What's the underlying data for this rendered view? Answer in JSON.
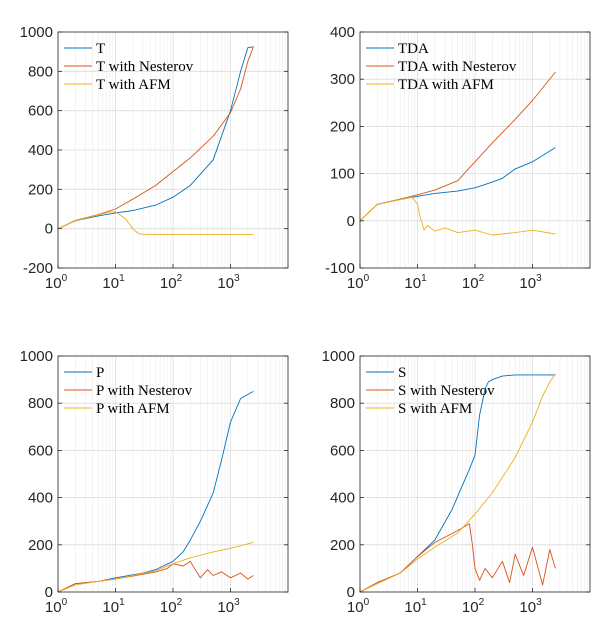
{
  "chart_data": [
    {
      "type": "line",
      "xscale": "log",
      "xlim": [
        1,
        10000
      ],
      "ylim": [
        -200,
        1000
      ],
      "yticks": [
        -200,
        0,
        200,
        400,
        600,
        800,
        1000
      ],
      "ytick_labels": [
        "-200",
        "0",
        "200",
        "400",
        "600",
        "800",
        "1000"
      ],
      "xtick_labels": [
        {
          "base": "10",
          "exp": "0"
        },
        {
          "base": "10",
          "exp": "1"
        },
        {
          "base": "10",
          "exp": "2"
        },
        {
          "base": "10",
          "exp": "3"
        }
      ],
      "grid": true,
      "legend_position": "top-left",
      "series": [
        {
          "name": "T",
          "color": "#0072bd",
          "x": [
            1,
            2,
            5,
            10,
            20,
            50,
            100,
            200,
            500,
            1000,
            1500,
            2000,
            2500
          ],
          "y": [
            0,
            40,
            65,
            80,
            92,
            120,
            160,
            220,
            350,
            600,
            800,
            920,
            925
          ]
        },
        {
          "name": "T with Nesterov",
          "color": "#d95319",
          "x": [
            1,
            2,
            5,
            10,
            20,
            50,
            100,
            200,
            500,
            1000,
            1500,
            2000,
            2500
          ],
          "y": [
            0,
            42,
            72,
            100,
            150,
            220,
            290,
            360,
            470,
            590,
            710,
            850,
            925
          ]
        },
        {
          "name": "T with AFM",
          "color": "#edb120",
          "x": [
            1,
            2,
            5,
            8,
            10,
            15,
            20,
            25,
            30,
            50,
            100,
            500,
            1000,
            2500
          ],
          "y": [
            0,
            40,
            70,
            85,
            85,
            50,
            0,
            -25,
            -28,
            -30,
            -30,
            -30,
            -30,
            -30
          ]
        }
      ]
    },
    {
      "type": "line",
      "xscale": "log",
      "xlim": [
        1,
        10000
      ],
      "ylim": [
        -100,
        400
      ],
      "yticks": [
        -100,
        0,
        100,
        200,
        300,
        400
      ],
      "ytick_labels": [
        "-100",
        "0",
        "100",
        "200",
        "300",
        "400"
      ],
      "xtick_labels": [
        {
          "base": "10",
          "exp": "0"
        },
        {
          "base": "10",
          "exp": "1"
        },
        {
          "base": "10",
          "exp": "2"
        },
        {
          "base": "10",
          "exp": "3"
        }
      ],
      "grid": true,
      "legend_position": "top-left",
      "series": [
        {
          "name": "TDA",
          "color": "#0072bd",
          "x": [
            1,
            2,
            5,
            10,
            20,
            50,
            100,
            200,
            300,
            500,
            1000,
            2500
          ],
          "y": [
            0,
            35,
            45,
            52,
            58,
            63,
            70,
            82,
            90,
            110,
            125,
            155
          ]
        },
        {
          "name": "TDA with Nesterov",
          "color": "#d95319",
          "x": [
            1,
            2,
            5,
            10,
            20,
            50,
            100,
            200,
            500,
            1000,
            2500
          ],
          "y": [
            0,
            35,
            46,
            55,
            65,
            85,
            125,
            165,
            215,
            255,
            315
          ]
        },
        {
          "name": "TDA with AFM",
          "color": "#edb120",
          "x": [
            1,
            2,
            5,
            8,
            10,
            11,
            12,
            13,
            15,
            20,
            30,
            50,
            100,
            200,
            500,
            1000,
            2500
          ],
          "y": [
            0,
            35,
            45,
            50,
            35,
            10,
            -5,
            -20,
            -10,
            -22,
            -15,
            -25,
            -20,
            -30,
            -25,
            -20,
            -28
          ]
        }
      ]
    },
    {
      "type": "line",
      "xscale": "log",
      "xlim": [
        1,
        10000
      ],
      "ylim": [
        0,
        1000
      ],
      "yticks": [
        0,
        200,
        400,
        600,
        800,
        1000
      ],
      "ytick_labels": [
        "0",
        "200",
        "400",
        "600",
        "800",
        "1000"
      ],
      "xtick_labels": [
        {
          "base": "10",
          "exp": "0"
        },
        {
          "base": "10",
          "exp": "1"
        },
        {
          "base": "10",
          "exp": "2"
        },
        {
          "base": "10",
          "exp": "3"
        }
      ],
      "grid": true,
      "legend_position": "top-left",
      "series": [
        {
          "name": "P",
          "color": "#0072bd",
          "x": [
            1,
            2,
            5,
            10,
            30,
            50,
            100,
            150,
            200,
            300,
            500,
            700,
            1000,
            1500,
            2500
          ],
          "y": [
            0,
            35,
            45,
            60,
            80,
            95,
            130,
            170,
            220,
            300,
            420,
            560,
            720,
            820,
            850
          ]
        },
        {
          "name": "P with Nesterov",
          "color": "#d95319",
          "x": [
            1,
            2,
            5,
            10,
            30,
            50,
            80,
            100,
            150,
            200,
            250,
            300,
            400,
            500,
            700,
            1000,
            1500,
            2000,
            2500
          ],
          "y": [
            0,
            35,
            45,
            55,
            75,
            85,
            100,
            120,
            110,
            130,
            90,
            60,
            95,
            70,
            85,
            60,
            80,
            55,
            70
          ]
        },
        {
          "name": "P with AFM",
          "color": "#edb120",
          "x": [
            1,
            2,
            5,
            10,
            20,
            50,
            100,
            200,
            500,
            1000,
            2500
          ],
          "y": [
            0,
            30,
            45,
            55,
            70,
            90,
            120,
            145,
            170,
            185,
            210
          ]
        }
      ]
    },
    {
      "type": "line",
      "xscale": "log",
      "xlim": [
        1,
        10000
      ],
      "ylim": [
        0,
        1000
      ],
      "yticks": [
        0,
        200,
        400,
        600,
        800,
        1000
      ],
      "ytick_labels": [
        "0",
        "200",
        "400",
        "600",
        "800",
        "1000"
      ],
      "xtick_labels": [
        {
          "base": "10",
          "exp": "0"
        },
        {
          "base": "10",
          "exp": "1"
        },
        {
          "base": "10",
          "exp": "2"
        },
        {
          "base": "10",
          "exp": "3"
        }
      ],
      "grid": true,
      "legend_position": "top-left",
      "series": [
        {
          "name": "S",
          "color": "#0072bd",
          "x": [
            1,
            2,
            5,
            10,
            20,
            40,
            60,
            80,
            100,
            120,
            150,
            170,
            200,
            300,
            500,
            1000,
            2500
          ],
          "y": [
            0,
            40,
            80,
            150,
            220,
            350,
            450,
            520,
            580,
            750,
            860,
            890,
            900,
            915,
            920,
            920,
            920
          ]
        },
        {
          "name": "S with Nesterov",
          "color": "#d95319",
          "x": [
            1,
            2,
            5,
            10,
            20,
            50,
            80,
            90,
            100,
            120,
            150,
            200,
            300,
            400,
            500,
            700,
            1000,
            1500,
            2000,
            2500
          ],
          "y": [
            0,
            40,
            80,
            150,
            210,
            260,
            290,
            200,
            100,
            50,
            100,
            60,
            130,
            40,
            160,
            70,
            190,
            30,
            180,
            100
          ]
        },
        {
          "name": "S with AFM",
          "color": "#edb120",
          "x": [
            1,
            2,
            5,
            10,
            20,
            50,
            100,
            200,
            500,
            1000,
            1500,
            2000,
            2500
          ],
          "y": [
            0,
            35,
            80,
            140,
            190,
            250,
            330,
            420,
            570,
            720,
            830,
            890,
            925
          ]
        }
      ]
    }
  ]
}
